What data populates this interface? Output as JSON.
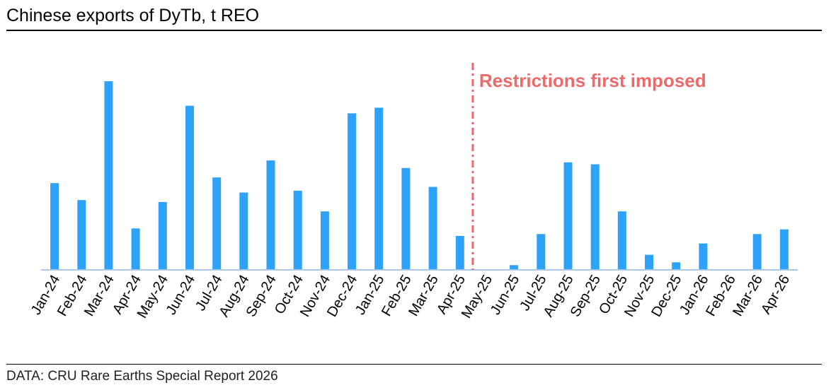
{
  "title": "Chinese exports of DyTb, t REO",
  "source": "DATA: CRU Rare Earths Special Report 2026",
  "colors": {
    "bar": "#2ea2f8",
    "axis": "#a9c8ee",
    "annotation": "#ec6a6a",
    "text": "#000000"
  },
  "chart_data": {
    "type": "bar",
    "title": "Chinese exports of DyTb, t REO",
    "xlabel": "",
    "ylabel": "",
    "grid": false,
    "categories": [
      "Jan-24",
      "Feb-24",
      "Mar-24",
      "Apr-24",
      "May-24",
      "Jun-24",
      "Jul-24",
      "Aug-24",
      "Sep-24",
      "Oct-24",
      "Nov-24",
      "Dec-24",
      "Jan-25",
      "Feb-25",
      "Mar-25",
      "Apr-25",
      "May-25",
      "Jun-25",
      "Jul-25",
      "Aug-25",
      "Sep-25",
      "Oct-25",
      "Nov-25",
      "Dec-25",
      "Jan-26",
      "Feb-26",
      "Mar-26",
      "Apr-26"
    ],
    "values": [
      46,
      37,
      100,
      22,
      36,
      87,
      49,
      41,
      58,
      42,
      31,
      83,
      86,
      54,
      44,
      18,
      0,
      2.5,
      19,
      57,
      56,
      31,
      8,
      4,
      14,
      0,
      19,
      21.5
    ],
    "ylim": [
      0,
      100
    ],
    "annotation": {
      "text": "Restrictions first imposed",
      "after_category": "Apr-25"
    }
  }
}
